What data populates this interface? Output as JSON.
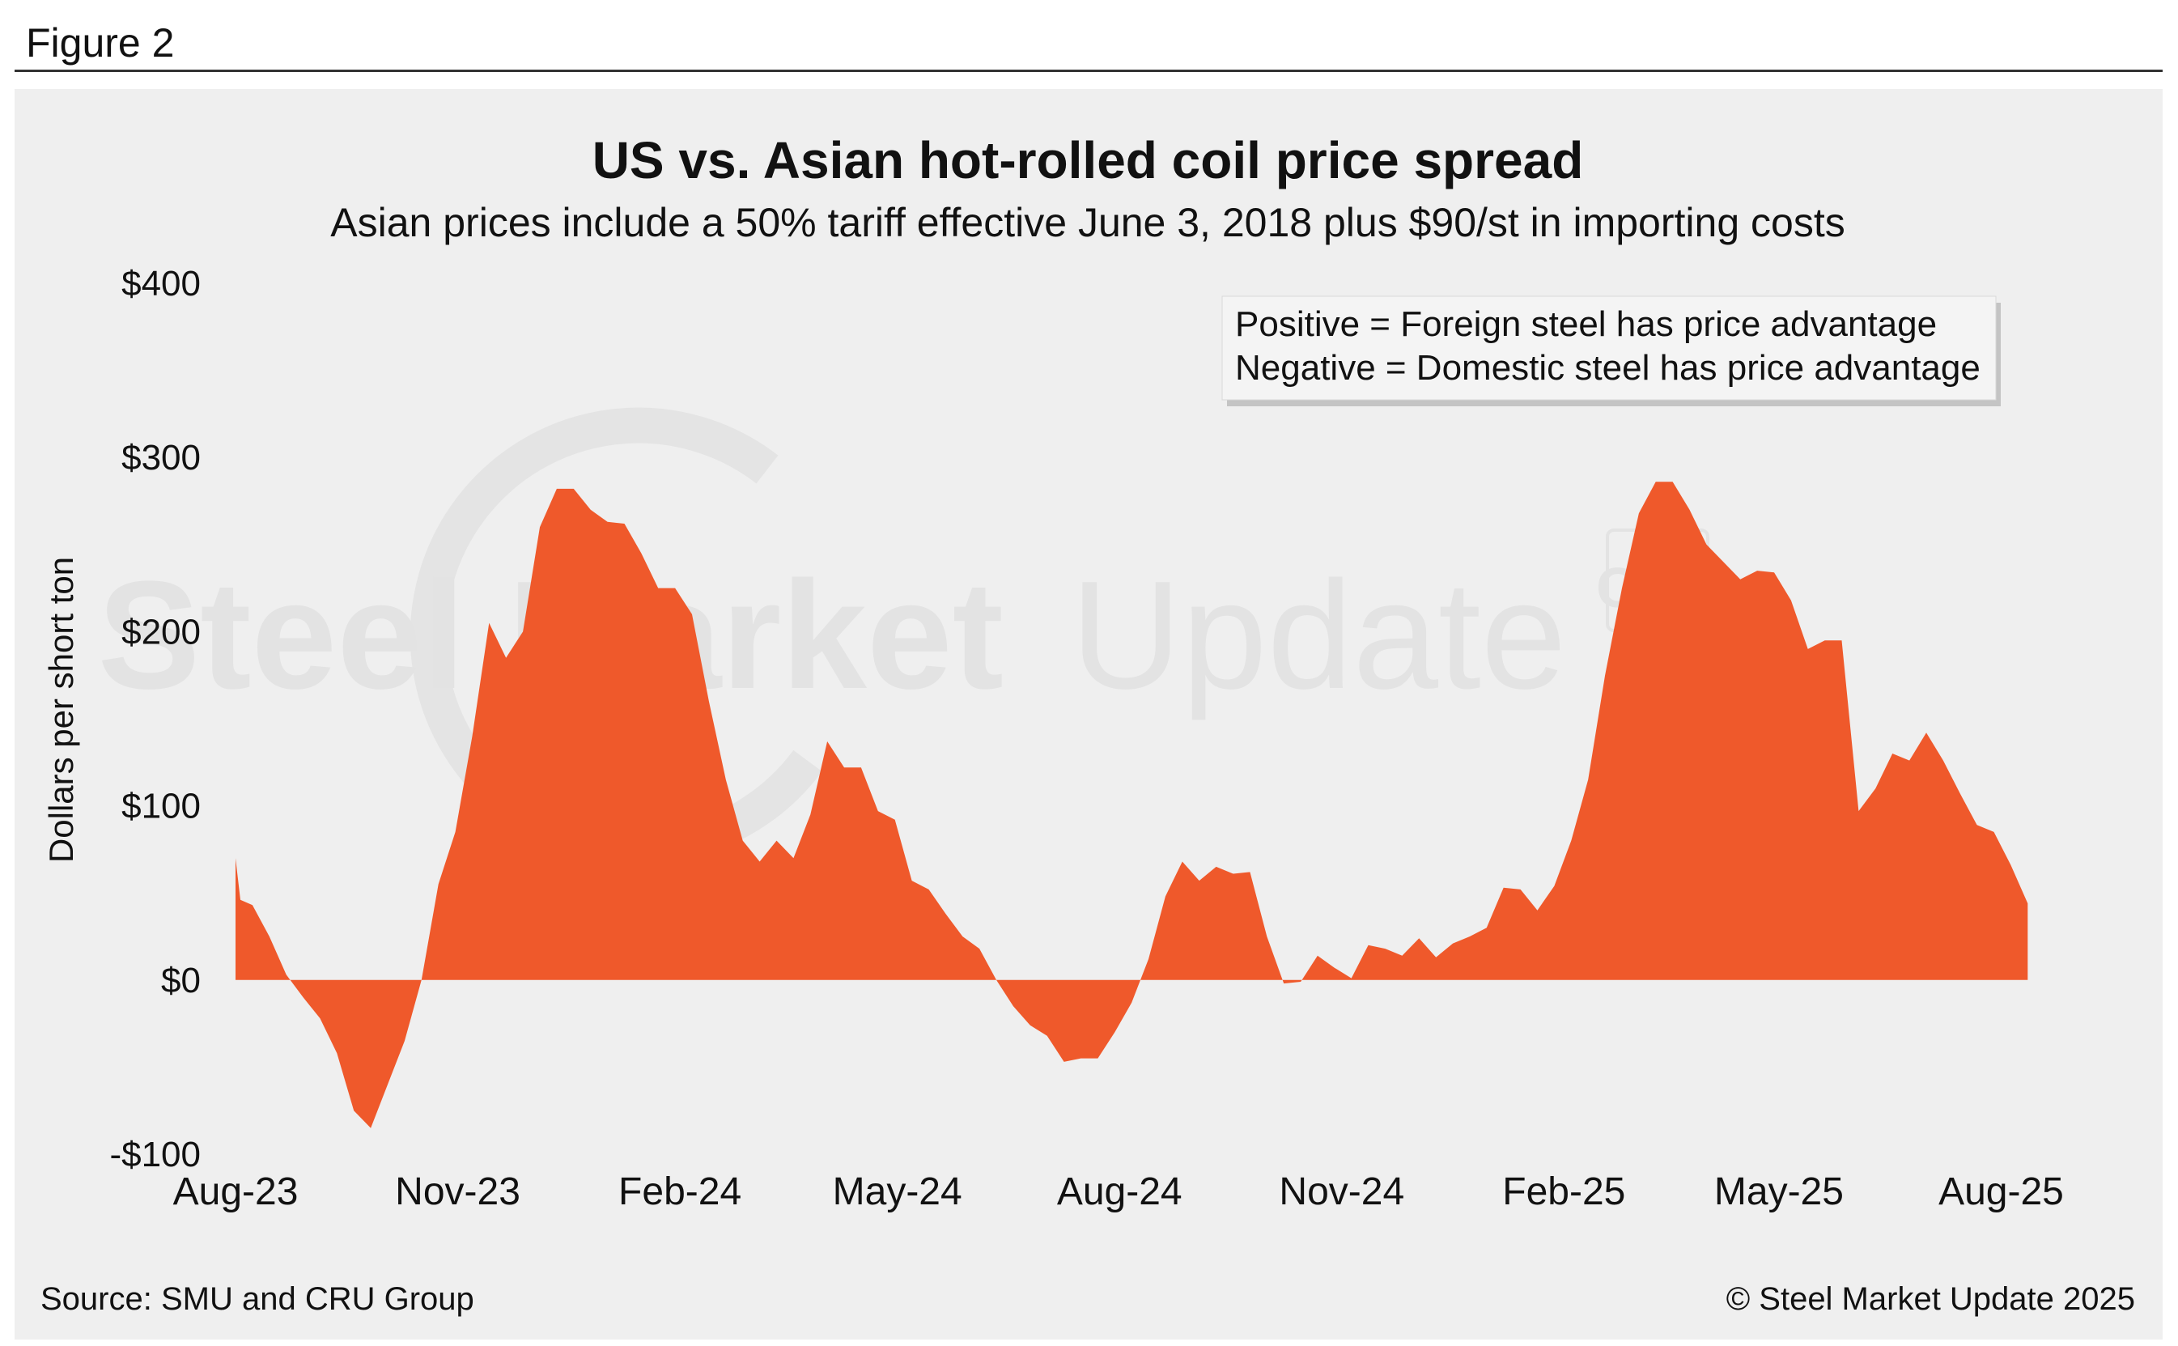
{
  "figure_label": "Figure 2",
  "source": "Source: SMU and CRU Group",
  "copyright": "© Steel Market Update 2025",
  "watermark": {
    "brand": "Steel Market Update",
    "brand_bold": "Steel Market",
    "brand_light": "Update",
    "badge": "CRU"
  },
  "colors": {
    "area": "#ef592b",
    "background": "#efefef",
    "text": "#111111"
  },
  "chart_data": {
    "type": "area",
    "title": "US vs. Asian hot-rolled coil price spread",
    "subtitle": "Asian prices include a 50% tariff effective June 3, 2018 plus $90/st in importing costs",
    "ylabel": "Dollars per short ton",
    "xlabel": "",
    "ylim": [
      -100,
      400
    ],
    "yticks": [
      -100,
      0,
      100,
      200,
      300,
      400
    ],
    "ytick_labels": [
      "-$100",
      "$0",
      "$100",
      "$200",
      "$300",
      "$400"
    ],
    "xlim": [
      "2023-08-01",
      "2025-09-01"
    ],
    "xtick_labels": [
      "Aug-23",
      "Nov-23",
      "Feb-24",
      "May-24",
      "Aug-24",
      "Nov-24",
      "Feb-25",
      "May-25",
      "Aug-25"
    ],
    "xtick_dates": [
      "2023-08-01",
      "2023-11-01",
      "2024-02-01",
      "2024-05-01",
      "2024-08-01",
      "2024-11-01",
      "2025-02-01",
      "2025-05-01",
      "2025-08-01"
    ],
    "grid": false,
    "annotation": [
      "Positive = Foreign steel has price advantage",
      "Negative = Domestic steel has price advantage"
    ],
    "series": [
      {
        "values": [
          [
            "2023-08-01",
            70
          ],
          [
            "2023-08-03",
            46
          ],
          [
            "2023-08-08",
            43
          ],
          [
            "2023-08-15",
            25
          ],
          [
            "2023-08-22",
            3
          ],
          [
            "2023-08-29",
            -10
          ],
          [
            "2023-09-05",
            -22
          ],
          [
            "2023-09-12",
            -42
          ],
          [
            "2023-09-19",
            -75
          ],
          [
            "2023-09-26",
            -85
          ],
          [
            "2023-10-03",
            -60
          ],
          [
            "2023-10-10",
            -35
          ],
          [
            "2023-10-17",
            0
          ],
          [
            "2023-10-24",
            55
          ],
          [
            "2023-10-31",
            85
          ],
          [
            "2023-11-07",
            140
          ],
          [
            "2023-11-14",
            205
          ],
          [
            "2023-11-21",
            185
          ],
          [
            "2023-11-28",
            200
          ],
          [
            "2023-12-05",
            260
          ],
          [
            "2023-12-12",
            282
          ],
          [
            "2023-12-19",
            282
          ],
          [
            "2023-12-26",
            270
          ],
          [
            "2024-01-02",
            263
          ],
          [
            "2024-01-09",
            262
          ],
          [
            "2024-01-16",
            245
          ],
          [
            "2024-01-23",
            225
          ],
          [
            "2024-01-30",
            225
          ],
          [
            "2024-02-06",
            210
          ],
          [
            "2024-02-13",
            160
          ],
          [
            "2024-02-20",
            115
          ],
          [
            "2024-02-27",
            80
          ],
          [
            "2024-03-05",
            68
          ],
          [
            "2024-03-12",
            80
          ],
          [
            "2024-03-19",
            70
          ],
          [
            "2024-03-26",
            95
          ],
          [
            "2024-04-02",
            137
          ],
          [
            "2024-04-09",
            122
          ],
          [
            "2024-04-16",
            122
          ],
          [
            "2024-04-23",
            97
          ],
          [
            "2024-04-30",
            92
          ],
          [
            "2024-05-07",
            57
          ],
          [
            "2024-05-14",
            52
          ],
          [
            "2024-05-21",
            38
          ],
          [
            "2024-05-28",
            25
          ],
          [
            "2024-06-04",
            18
          ],
          [
            "2024-06-11",
            0
          ],
          [
            "2024-06-18",
            -15
          ],
          [
            "2024-06-25",
            -26
          ],
          [
            "2024-07-02",
            -32
          ],
          [
            "2024-07-09",
            -47
          ],
          [
            "2024-07-16",
            -45
          ],
          [
            "2024-07-23",
            -45
          ],
          [
            "2024-07-30",
            -30
          ],
          [
            "2024-08-06",
            -13
          ],
          [
            "2024-08-13",
            12
          ],
          [
            "2024-08-20",
            48
          ],
          [
            "2024-08-27",
            68
          ],
          [
            "2024-09-03",
            57
          ],
          [
            "2024-09-10",
            65
          ],
          [
            "2024-09-17",
            61
          ],
          [
            "2024-09-24",
            62
          ],
          [
            "2024-10-01",
            25
          ],
          [
            "2024-10-08",
            -2
          ],
          [
            "2024-10-15",
            -1
          ],
          [
            "2024-10-22",
            14
          ],
          [
            "2024-10-29",
            7
          ],
          [
            "2024-11-05",
            1
          ],
          [
            "2024-11-12",
            20
          ],
          [
            "2024-11-19",
            18
          ],
          [
            "2024-11-26",
            14
          ],
          [
            "2024-12-03",
            24
          ],
          [
            "2024-12-10",
            13
          ],
          [
            "2024-12-17",
            21
          ],
          [
            "2024-12-24",
            25
          ],
          [
            "2024-12-31",
            30
          ],
          [
            "2025-01-07",
            53
          ],
          [
            "2025-01-14",
            52
          ],
          [
            "2025-01-21",
            40
          ],
          [
            "2025-01-28",
            54
          ],
          [
            "2025-02-04",
            80
          ],
          [
            "2025-02-11",
            115
          ],
          [
            "2025-02-18",
            175
          ],
          [
            "2025-02-25",
            225
          ],
          [
            "2025-03-04",
            268
          ],
          [
            "2025-03-11",
            286
          ],
          [
            "2025-03-18",
            286
          ],
          [
            "2025-03-25",
            270
          ],
          [
            "2025-04-01",
            250
          ],
          [
            "2025-04-08",
            240
          ],
          [
            "2025-04-15",
            230
          ],
          [
            "2025-04-22",
            235
          ],
          [
            "2025-04-29",
            234
          ],
          [
            "2025-05-06",
            218
          ],
          [
            "2025-05-13",
            190
          ],
          [
            "2025-05-20",
            195
          ],
          [
            "2025-05-27",
            195
          ],
          [
            "2025-06-03",
            97
          ],
          [
            "2025-06-10",
            110
          ],
          [
            "2025-06-17",
            130
          ],
          [
            "2025-06-24",
            126
          ],
          [
            "2025-07-01",
            142
          ],
          [
            "2025-07-08",
            126
          ],
          [
            "2025-07-15",
            107
          ],
          [
            "2025-07-22",
            89
          ],
          [
            "2025-07-29",
            85
          ],
          [
            "2025-08-05",
            66
          ],
          [
            "2025-08-12",
            44
          ]
        ]
      }
    ]
  }
}
